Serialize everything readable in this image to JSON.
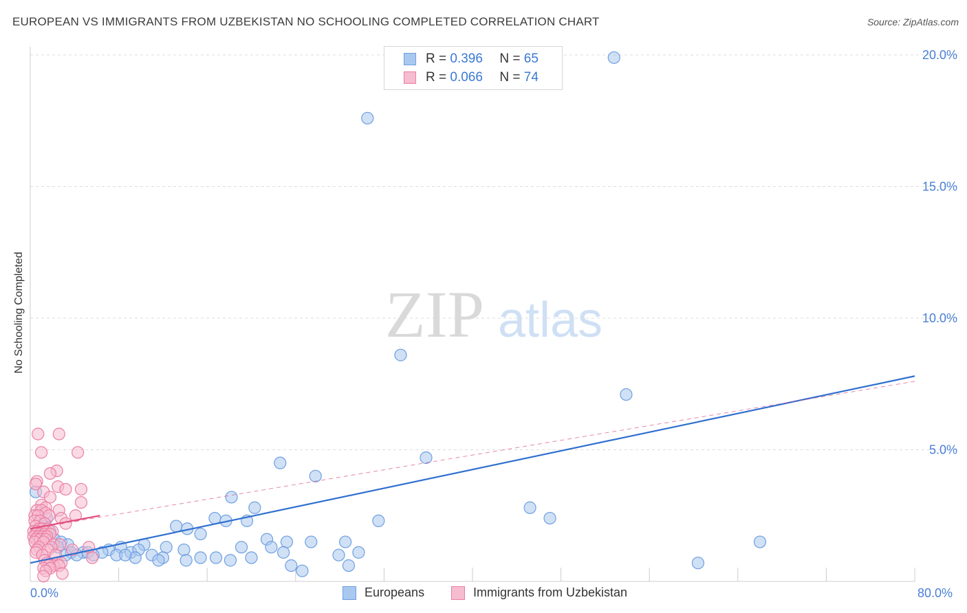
{
  "title": "EUROPEAN VS IMMIGRANTS FROM UZBEKISTAN NO SCHOOLING COMPLETED CORRELATION CHART",
  "source": "Source: ZipAtlas.com",
  "watermark": {
    "zip": "ZIP",
    "atlas": "atlas"
  },
  "legend": {
    "r_label": "R =",
    "n_label": "N =",
    "series1": {
      "r": "0.396",
      "n": "65"
    },
    "series2": {
      "r": "0.066",
      "n": "74"
    }
  },
  "bottom_legend": {
    "series1": "Europeans",
    "series2": "Immigrants from Uzbekistan"
  },
  "colors": {
    "blue_fill": "#aac8ef",
    "blue_stroke": "#6e9ee0",
    "blue_line": "#2f6fcf",
    "pink_fill": "#f6bccf",
    "pink_stroke": "#ea7fa3",
    "pink_line": "#e0507f",
    "grid": "#dcdcdc",
    "axis_text": "#4a7fd4"
  },
  "chart_data": {
    "type": "scatter",
    "title": "EUROPEAN VS IMMIGRANTS FROM UZBEKISTAN NO SCHOOLING COMPLETED CORRELATION CHART",
    "xlabel": "",
    "ylabel": "No Schooling Completed",
    "xlim": [
      0,
      80
    ],
    "ylim": [
      0,
      20
    ],
    "x_tick_labels": [
      "0.0%",
      "80.0%"
    ],
    "y_ticks": [
      {
        "value": 5,
        "label": "5.0%"
      },
      {
        "value": 10,
        "label": "10.0%"
      },
      {
        "value": 15,
        "label": "15.0%"
      },
      {
        "value": 20,
        "label": "20.0%"
      }
    ],
    "series": [
      {
        "name": "Europeans",
        "r": 0.396,
        "n": 65,
        "trend": {
          "x0": 0,
          "y0": 0.7,
          "x1": 80,
          "y1": 7.8,
          "style": "solid"
        },
        "points": [
          [
            52.8,
            19.9
          ],
          [
            30.5,
            17.6
          ],
          [
            33.5,
            8.6
          ],
          [
            53.9,
            7.1
          ],
          [
            22.6,
            4.5
          ],
          [
            35.8,
            4.7
          ],
          [
            25.8,
            4.0
          ],
          [
            18.2,
            3.2
          ],
          [
            45.2,
            2.8
          ],
          [
            47.0,
            2.4
          ],
          [
            31.5,
            2.3
          ],
          [
            20.3,
            2.8
          ],
          [
            16.7,
            2.4
          ],
          [
            17.7,
            2.3
          ],
          [
            19.6,
            2.3
          ],
          [
            13.2,
            2.1
          ],
          [
            14.2,
            2.0
          ],
          [
            15.4,
            1.8
          ],
          [
            0.5,
            3.4
          ],
          [
            1.5,
            2.4
          ],
          [
            1.2,
            2.1
          ],
          [
            1.8,
            1.9
          ],
          [
            2.2,
            1.6
          ],
          [
            2.8,
            1.5
          ],
          [
            3.4,
            1.4
          ],
          [
            2.5,
            1.3
          ],
          [
            21.4,
            1.6
          ],
          [
            23.2,
            1.5
          ],
          [
            25.4,
            1.5
          ],
          [
            28.5,
            1.5
          ],
          [
            66.0,
            1.5
          ],
          [
            10.3,
            1.4
          ],
          [
            12.3,
            1.3
          ],
          [
            13.9,
            1.2
          ],
          [
            19.1,
            1.3
          ],
          [
            21.8,
            1.3
          ],
          [
            22.9,
            1.1
          ],
          [
            8.2,
            1.3
          ],
          [
            9.1,
            1.1
          ],
          [
            9.8,
            1.2
          ],
          [
            7.1,
            1.2
          ],
          [
            6.5,
            1.1
          ],
          [
            4.8,
            1.1
          ],
          [
            5.2,
            1.1
          ],
          [
            5.7,
            1.0
          ],
          [
            3.7,
            1.1
          ],
          [
            4.2,
            1.0
          ],
          [
            3.2,
            1.0
          ],
          [
            9.5,
            0.9
          ],
          [
            11.0,
            1.0
          ],
          [
            12.0,
            0.9
          ],
          [
            7.8,
            1.0
          ],
          [
            8.6,
            1.0
          ],
          [
            15.4,
            0.9
          ],
          [
            16.8,
            0.9
          ],
          [
            18.1,
            0.8
          ],
          [
            20.0,
            0.9
          ],
          [
            11.6,
            0.8
          ],
          [
            14.1,
            0.8
          ],
          [
            23.6,
            0.6
          ],
          [
            27.9,
            1.0
          ],
          [
            29.7,
            1.1
          ],
          [
            28.8,
            0.6
          ],
          [
            24.6,
            0.4
          ],
          [
            60.4,
            0.7
          ]
        ]
      },
      {
        "name": "Immigrants from Uzbekistan",
        "r": 0.066,
        "n": 74,
        "trend": {
          "x0": 0,
          "y0": 2.0,
          "x1": 6.3,
          "y1": 2.5,
          "style": "solid"
        },
        "trend_ext": {
          "x0": 0,
          "y0": 2.0,
          "x1": 80,
          "y1": 7.6,
          "style": "dashed"
        },
        "points": [
          [
            0.7,
            5.6
          ],
          [
            2.6,
            5.6
          ],
          [
            1.0,
            4.9
          ],
          [
            4.3,
            4.9
          ],
          [
            2.4,
            4.2
          ],
          [
            1.8,
            4.1
          ],
          [
            0.6,
            3.8
          ],
          [
            0.5,
            3.7
          ],
          [
            2.5,
            3.6
          ],
          [
            3.2,
            3.5
          ],
          [
            4.6,
            3.5
          ],
          [
            1.2,
            3.4
          ],
          [
            1.8,
            3.2
          ],
          [
            4.6,
            3.0
          ],
          [
            1.0,
            2.9
          ],
          [
            1.4,
            2.8
          ],
          [
            0.6,
            2.7
          ],
          [
            1.0,
            2.7
          ],
          [
            2.6,
            2.7
          ],
          [
            1.4,
            2.6
          ],
          [
            0.4,
            2.5
          ],
          [
            0.7,
            2.5
          ],
          [
            1.7,
            2.5
          ],
          [
            4.1,
            2.5
          ],
          [
            2.8,
            2.4
          ],
          [
            0.4,
            2.3
          ],
          [
            0.9,
            2.3
          ],
          [
            1.3,
            2.2
          ],
          [
            3.2,
            2.2
          ],
          [
            0.5,
            2.1
          ],
          [
            0.8,
            2.0
          ],
          [
            1.1,
            2.0
          ],
          [
            1.6,
            2.0
          ],
          [
            0.3,
            1.9
          ],
          [
            0.6,
            1.9
          ],
          [
            1.4,
            1.9
          ],
          [
            2.0,
            1.9
          ],
          [
            0.5,
            1.8
          ],
          [
            0.9,
            1.8
          ],
          [
            1.3,
            1.8
          ],
          [
            1.8,
            1.8
          ],
          [
            0.3,
            1.7
          ],
          [
            0.7,
            1.7
          ],
          [
            1.1,
            1.7
          ],
          [
            1.5,
            1.7
          ],
          [
            0.5,
            1.6
          ],
          [
            0.9,
            1.6
          ],
          [
            1.4,
            1.6
          ],
          [
            0.4,
            1.5
          ],
          [
            1.2,
            1.5
          ],
          [
            2.1,
            1.4
          ],
          [
            2.7,
            1.4
          ],
          [
            0.8,
            1.3
          ],
          [
            1.9,
            1.3
          ],
          [
            5.3,
            1.3
          ],
          [
            0.6,
            1.2
          ],
          [
            1.6,
            1.2
          ],
          [
            3.8,
            1.2
          ],
          [
            0.5,
            1.1
          ],
          [
            1.1,
            1.0
          ],
          [
            2.3,
            1.0
          ],
          [
            5.6,
            0.9
          ],
          [
            1.3,
            0.8
          ],
          [
            2.4,
            0.7
          ],
          [
            2.8,
            0.7
          ],
          [
            1.5,
            0.7
          ],
          [
            2.1,
            0.6
          ],
          [
            2.6,
            0.6
          ],
          [
            1.7,
            0.6
          ],
          [
            1.2,
            0.5
          ],
          [
            1.8,
            0.5
          ],
          [
            1.4,
            0.4
          ],
          [
            2.9,
            0.3
          ],
          [
            1.2,
            0.2
          ]
        ]
      }
    ]
  }
}
